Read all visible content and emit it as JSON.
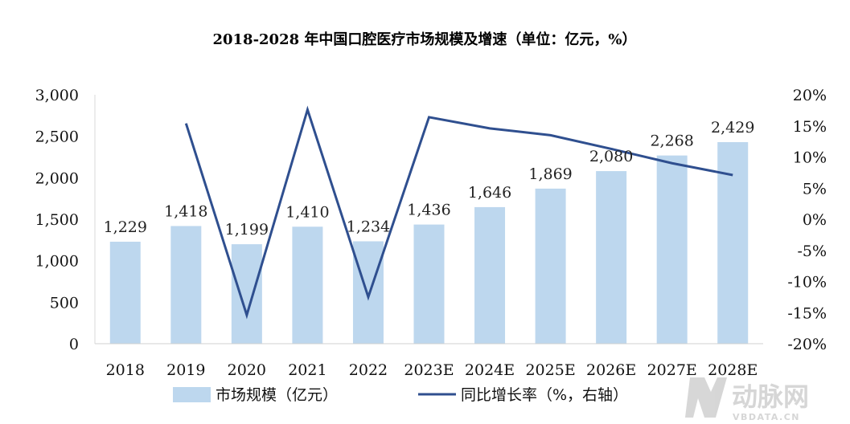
{
  "chart_data": {
    "type": "bar",
    "title": "2018-2028 年中国口腔医疗市场规模及增速（单位：亿元，%）",
    "categories": [
      "2018",
      "2019",
      "2020",
      "2021",
      "2022",
      "2023E",
      "2024E",
      "2025E",
      "2026E",
      "2027E",
      "2028E"
    ],
    "series": [
      {
        "name": "市场规模（亿元）",
        "type": "bar",
        "axis": "left",
        "color": "#bdd7ee",
        "values": [
          1229,
          1418,
          1199,
          1410,
          1234,
          1436,
          1646,
          1869,
          2080,
          2268,
          2429
        ],
        "data_labels": [
          "1,229",
          "1,418",
          "1,199",
          "1,410",
          "1,234",
          "1,436",
          "1,646",
          "1,869",
          "2,080",
          "2,268",
          "2,429"
        ]
      },
      {
        "name": "同比增长率（%，右轴）",
        "type": "line",
        "axis": "right",
        "color": "#2f4f8f",
        "values": [
          null,
          15.4,
          -15.4,
          17.6,
          -12.5,
          16.4,
          14.6,
          13.5,
          11.3,
          9.0,
          7.1
        ]
      }
    ],
    "y_left": {
      "range": [
        0,
        3000
      ],
      "ticks": [
        0,
        500,
        1000,
        1500,
        2000,
        2500,
        3000
      ],
      "tick_labels": [
        "0",
        "500",
        "1,000",
        "1,500",
        "2,000",
        "2,500",
        "3,000"
      ]
    },
    "y_right": {
      "range": [
        -20,
        20
      ],
      "ticks": [
        -20,
        -15,
        -10,
        -5,
        0,
        5,
        10,
        15,
        20
      ],
      "tick_labels": [
        "-20%",
        "-15%",
        "-10%",
        "-5%",
        "0%",
        "5%",
        "10%",
        "15%",
        "20%"
      ]
    },
    "xlabel": "",
    "grid": false,
    "legend_position": "bottom"
  },
  "watermark": {
    "text": "动脉网",
    "subtext": "VBDATA.CN"
  }
}
